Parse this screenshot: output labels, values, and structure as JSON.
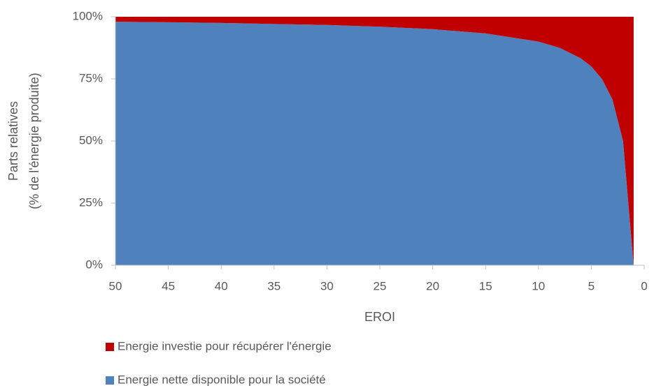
{
  "chart_data": {
    "type": "stacked_area",
    "xlabel": "EROI",
    "ylabel": [
      "Parts relatives",
      "(% de l'énergie produite)"
    ],
    "x": [
      50,
      45,
      40,
      35,
      30,
      25,
      20,
      15,
      10,
      8,
      6,
      5,
      4,
      3,
      2,
      1
    ],
    "series": [
      {
        "name": "Energie investie pour récupérer l'énergie",
        "color": "#c00000",
        "values": [
          2,
          2.2,
          2.5,
          2.9,
          3.3,
          4,
          5,
          6.7,
          10,
          12.5,
          16.7,
          20,
          25,
          33.3,
          50,
          100
        ]
      },
      {
        "name": "Energie nette disponible pour la société",
        "color": "#4f81bd",
        "values": [
          98,
          97.8,
          97.5,
          97.1,
          96.7,
          96,
          95,
          93.3,
          90,
          87.5,
          83.3,
          80,
          75,
          66.7,
          50,
          0
        ]
      }
    ],
    "xlim": [
      50,
      0
    ],
    "xticks": [
      50,
      45,
      40,
      35,
      30,
      25,
      20,
      15,
      10,
      5,
      0
    ],
    "ylim": [
      0,
      100
    ],
    "yticks": [
      {
        "value": 0,
        "label": "0%"
      },
      {
        "value": 25,
        "label": "25%"
      },
      {
        "value": 50,
        "label": "50%"
      },
      {
        "value": 75,
        "label": "75%"
      },
      {
        "value": 100,
        "label": "100%"
      }
    ],
    "grid": false
  }
}
